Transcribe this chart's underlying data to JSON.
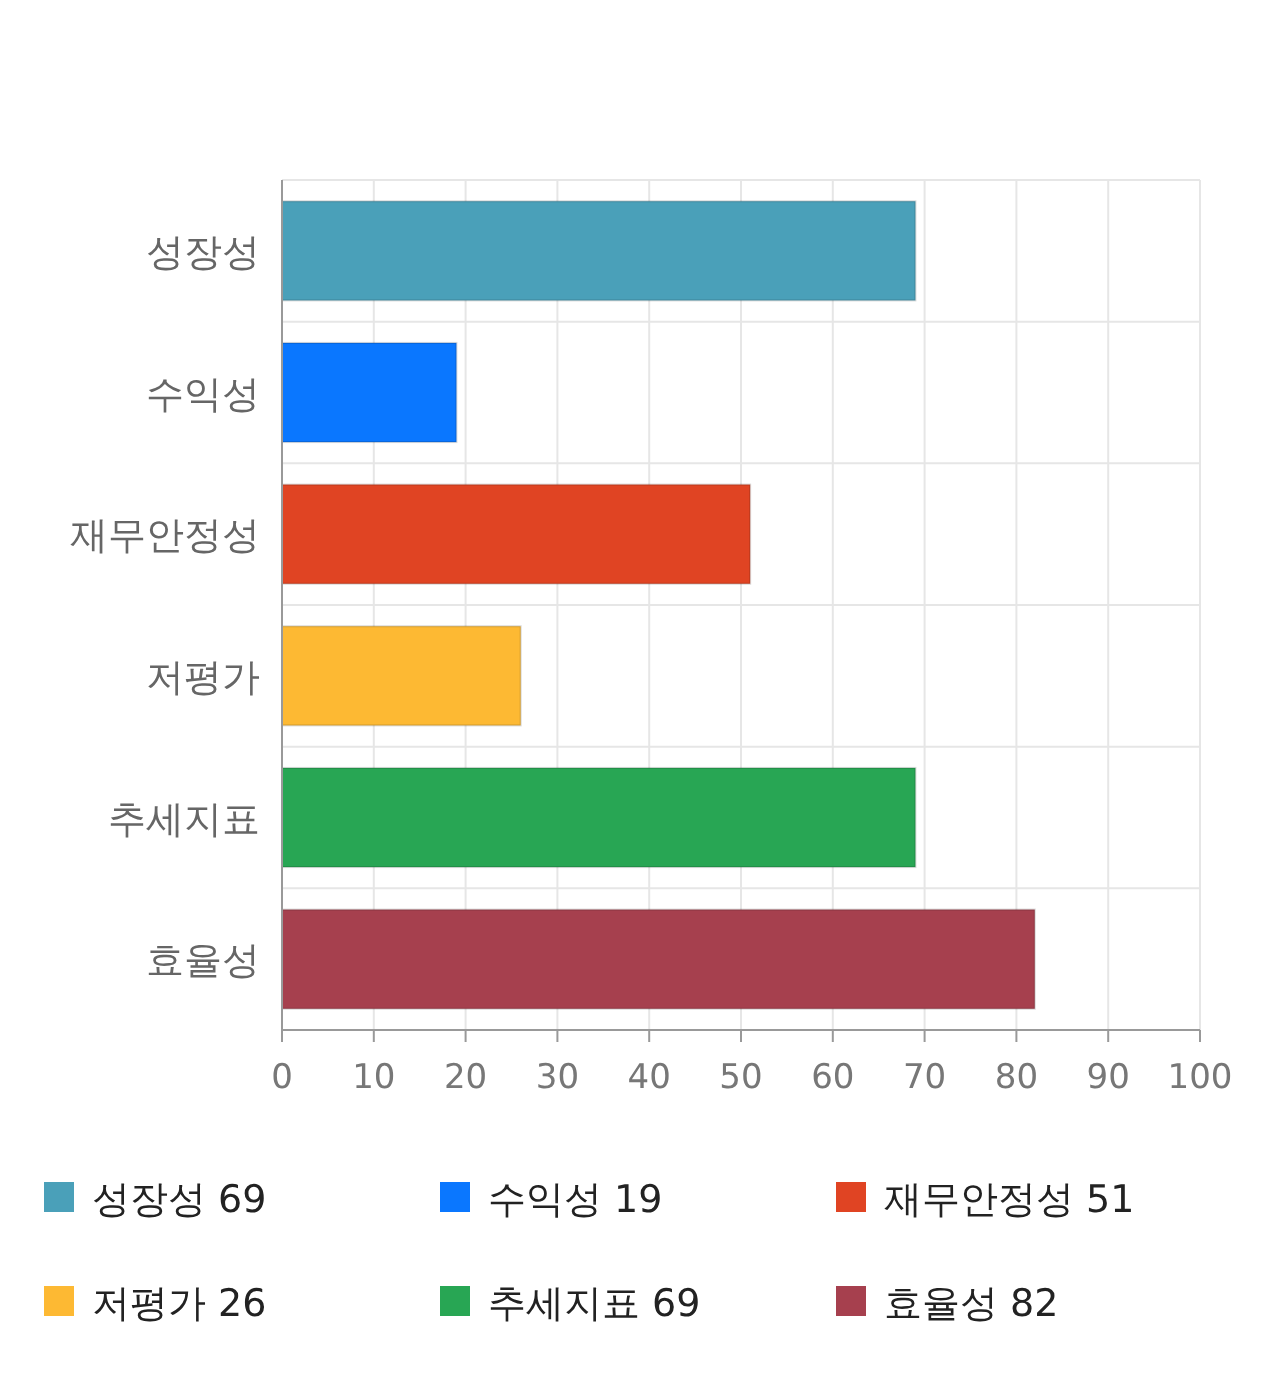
{
  "chart_data": {
    "type": "bar",
    "orientation": "horizontal",
    "categories": [
      "성장성",
      "수익성",
      "재무안정성",
      "저평가",
      "추세지표",
      "효율성"
    ],
    "series": [
      {
        "name": "성장성 69",
        "color": "#4aa0b9",
        "values": [
          69,
          null,
          null,
          null,
          null,
          null
        ]
      },
      {
        "name": "수익성 19",
        "color": "#0a77ff",
        "values": [
          null,
          19,
          null,
          null,
          null,
          null
        ]
      },
      {
        "name": "재무안정성 51",
        "color": "#e04423",
        "values": [
          null,
          null,
          51,
          null,
          null,
          null
        ]
      },
      {
        "name": "저평가 26",
        "color": "#fdb933",
        "values": [
          null,
          null,
          null,
          26,
          null,
          null
        ]
      },
      {
        "name": "추세지표 69",
        "color": "#28a654",
        "values": [
          null,
          null,
          null,
          null,
          69,
          null
        ]
      },
      {
        "name": "효율성 82",
        "color": "#a6404e",
        "values": [
          null,
          null,
          null,
          null,
          null,
          82
        ]
      }
    ],
    "xlim": [
      0,
      100
    ],
    "xticks": [
      0,
      10,
      20,
      30,
      40,
      50,
      60,
      70,
      80,
      90,
      100
    ],
    "grid": true,
    "legend": "bottom"
  }
}
